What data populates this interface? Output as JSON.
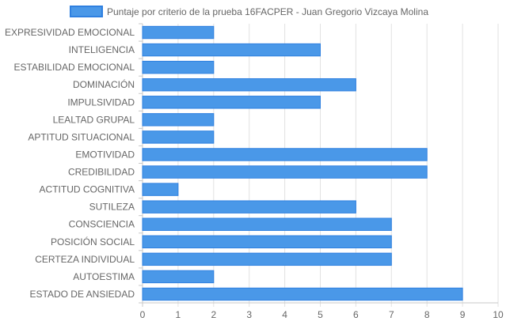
{
  "chart_data": {
    "type": "bar",
    "orientation": "horizontal",
    "title": "",
    "xlabel": "",
    "ylabel": "",
    "xlim": [
      0,
      10
    ],
    "x_ticks": [
      "0",
      "1",
      "2",
      "3",
      "4",
      "5",
      "6",
      "7",
      "8",
      "9",
      "10"
    ],
    "grid": true,
    "legend_position": "top",
    "colors": {
      "bar_fill": "#4a98e8",
      "bar_border": "#2f80e0",
      "grid": "#e2e2e2",
      "axis": "#c8c8c8",
      "text": "#666666"
    },
    "categories": [
      "EXPRESIVIDAD EMOCIONAL",
      "INTELIGENCIA",
      "ESTABILIDAD EMOCIONAL",
      "DOMINACIÓN",
      "IMPULSIVIDAD",
      "LEALTAD GRUPAL",
      "APTITUD SITUACIONAL",
      "EMOTIVIDAD",
      "CREDIBILIDAD",
      "ACTITUD COGNITIVA",
      "SUTILEZA",
      "CONSCIENCIA",
      "POSICIÓN SOCIAL",
      "CERTEZA INDIVIDUAL",
      "AUTOESTIMA",
      "ESTADO DE ANSIEDAD"
    ],
    "series": [
      {
        "name": "Puntaje por criterio de la prueba 16FACPER - Juan Gregorio Vizcaya Molina",
        "values": [
          2,
          5,
          2,
          6,
          5,
          2,
          2,
          8,
          8,
          1,
          6,
          7,
          7,
          7,
          2,
          9
        ]
      }
    ]
  }
}
